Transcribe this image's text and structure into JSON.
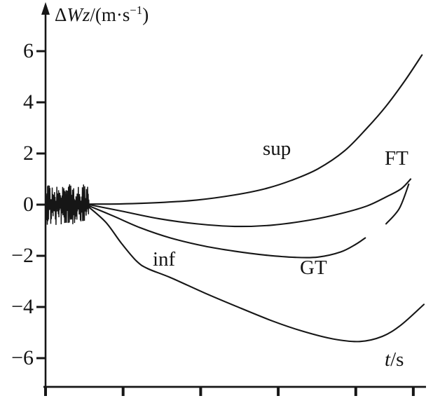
{
  "figure": {
    "background": "#ffffff",
    "ink_color": "#161616",
    "description": "Scanned line chart of vertical velocity error versus time with four traces"
  },
  "labels": {
    "ylabel_prefix": "Δ",
    "ylabel_symbol": "Wz",
    "ylabel_unit_pre": "/(m·s",
    "ylabel_exponent": "−1",
    "ylabel_unit_post": ")",
    "xlabel_var": "t",
    "xlabel_unit": "/s"
  },
  "chart_data": {
    "type": "line",
    "title": "",
    "ylabel": "ΔWz/(m·s⁻¹)",
    "xlabel": "t/s",
    "xlim": [
      0,
      1
    ],
    "ylim": [
      -7.2,
      7.4
    ],
    "grid": false,
    "legend_position": "inline-labels",
    "yticks": [
      {
        "value": 6,
        "label": "6"
      },
      {
        "value": 4,
        "label": "4"
      },
      {
        "value": 2,
        "label": "2"
      },
      {
        "value": 0,
        "label": "0"
      },
      {
        "value": -2,
        "label": "−2"
      },
      {
        "value": -4,
        "label": "−4"
      },
      {
        "value": -6,
        "label": "−6"
      }
    ],
    "xticks": [
      0.0,
      0.205,
      0.41,
      0.615,
      0.82,
      0.972
    ],
    "x_tick_labels": [],
    "noise_burst": {
      "description": "high-frequency oscillation around 0 at the start of all traces",
      "t_start": 0.0,
      "t_end": 0.115,
      "amplitude": 0.8,
      "segments": 150
    },
    "series": [
      {
        "name": "sup",
        "label": {
          "text": "sup"
        },
        "points": [
          [
            0.115,
            0.02
          ],
          [
            0.2,
            0.03
          ],
          [
            0.3,
            0.08
          ],
          [
            0.4,
            0.18
          ],
          [
            0.5,
            0.38
          ],
          [
            0.58,
            0.62
          ],
          [
            0.65,
            0.95
          ],
          [
            0.72,
            1.4
          ],
          [
            0.79,
            2.1
          ],
          [
            0.85,
            3.0
          ],
          [
            0.9,
            3.85
          ],
          [
            0.95,
            4.85
          ],
          [
            0.995,
            5.85
          ]
        ]
      },
      {
        "name": "FT",
        "label": {
          "text": "FT"
        },
        "points": [
          [
            0.115,
            0.0
          ],
          [
            0.2,
            -0.25
          ],
          [
            0.3,
            -0.55
          ],
          [
            0.4,
            -0.75
          ],
          [
            0.5,
            -0.85
          ],
          [
            0.6,
            -0.8
          ],
          [
            0.7,
            -0.6
          ],
          [
            0.78,
            -0.35
          ],
          [
            0.85,
            -0.05
          ],
          [
            0.9,
            0.3
          ],
          [
            0.94,
            0.62
          ],
          [
            0.965,
            1.0
          ]
        ]
      },
      {
        "name": "FT-tip",
        "label": null,
        "points": [
          [
            0.9,
            -0.75
          ],
          [
            0.935,
            -0.15
          ],
          [
            0.96,
            0.8
          ]
        ]
      },
      {
        "name": "GT",
        "label": {
          "text": "GT"
        },
        "points": [
          [
            0.115,
            -0.05
          ],
          [
            0.18,
            -0.45
          ],
          [
            0.25,
            -0.9
          ],
          [
            0.33,
            -1.3
          ],
          [
            0.42,
            -1.62
          ],
          [
            0.5,
            -1.82
          ],
          [
            0.58,
            -1.97
          ],
          [
            0.66,
            -2.06
          ],
          [
            0.72,
            -2.05
          ],
          [
            0.78,
            -1.85
          ],
          [
            0.82,
            -1.55
          ],
          [
            0.845,
            -1.3
          ]
        ]
      },
      {
        "name": "inf",
        "label": {
          "text": "inf"
        },
        "points": [
          [
            0.115,
            -0.1
          ],
          [
            0.16,
            -0.7
          ],
          [
            0.2,
            -1.5
          ],
          [
            0.24,
            -2.2
          ],
          [
            0.27,
            -2.5
          ],
          [
            0.33,
            -2.85
          ],
          [
            0.42,
            -3.45
          ],
          [
            0.5,
            -3.95
          ],
          [
            0.6,
            -4.55
          ],
          [
            0.68,
            -4.95
          ],
          [
            0.76,
            -5.25
          ],
          [
            0.83,
            -5.35
          ],
          [
            0.89,
            -5.15
          ],
          [
            0.94,
            -4.7
          ],
          [
            1.0,
            -3.9
          ]
        ]
      }
    ]
  }
}
